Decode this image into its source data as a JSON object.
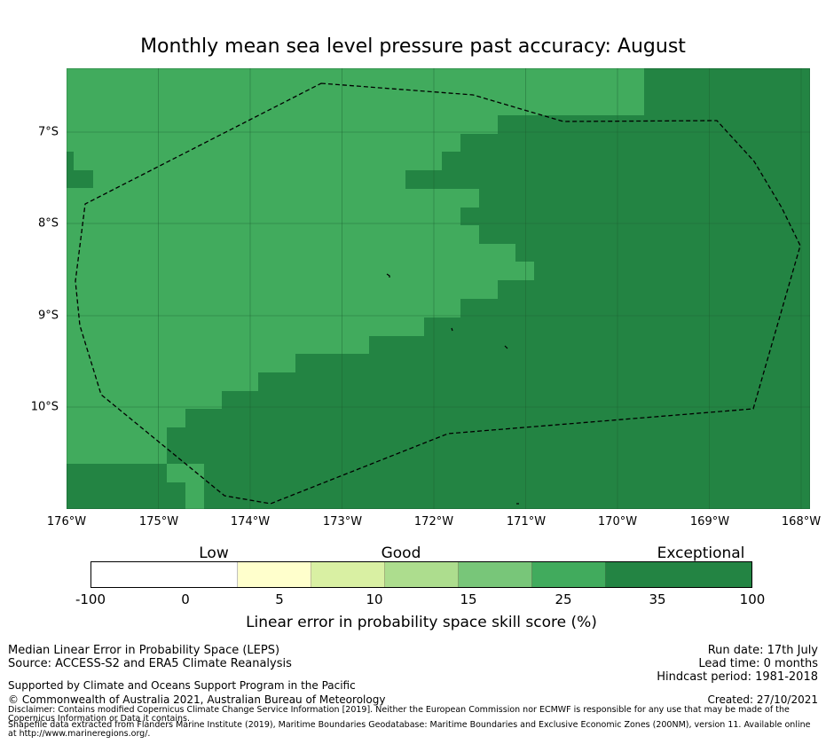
{
  "title": "Monthly mean sea level pressure past accuracy: August",
  "map": {
    "lon_labels": [
      "176°W",
      "175°W",
      "174°W",
      "173°W",
      "172°W",
      "171°W",
      "170°W",
      "169°W",
      "168°W"
    ],
    "lat_labels": [
      "7°S",
      "8°S",
      "9°S",
      "10°S"
    ],
    "colors": {
      "band_25_35": "#41ab5d",
      "band_35_100": "#238443",
      "gridline": "#1c5f30",
      "boundary": "#000000"
    },
    "boundary_style": "dashed"
  },
  "colorbar": {
    "categories": [
      "Low",
      "Good",
      "Exceptional"
    ],
    "ticks": [
      "-100",
      "0",
      "5",
      "10",
      "15",
      "25",
      "35",
      "100"
    ],
    "colors": [
      "#ffffff",
      "#ffffcc",
      "#d9f0a3",
      "#addd8e",
      "#78c679",
      "#41ab5d",
      "#238443"
    ],
    "label": "Linear error in probability space skill score (%)"
  },
  "footer": {
    "left": {
      "line1": "Median Linear Error in Probability Space (LEPS)",
      "line2": "Source: ACCESS-S2 and ERA5 Climate Reanalysis",
      "supported": "Supported by Climate and Oceans Support Program in the Pacific",
      "copyright": "© Commonwealth of Australia 2021, Australian Bureau of Meteorology",
      "disclaimer": "Disclaimer: Contains modified Copernicus Climate Change Service Information [2019]. Neither the European Commission nor ECMWF is responsible for any use that may be made of the Copernicus Information or Data it contains.",
      "shapefile": "Shapefile data extracted from Flanders Marine Institute (2019), Maritime Boundaries Geodatabase: Maritime Boundaries and Exclusive Economic Zones (200NM), version 11. Available online at http://www.marineregions.org/."
    },
    "right": {
      "run_date": "Run date: 17th July",
      "lead_time": "Lead time: 0 months",
      "hindcast": "Hindcast period: 1981-2018",
      "created": "Created: 27/10/2021"
    }
  }
}
